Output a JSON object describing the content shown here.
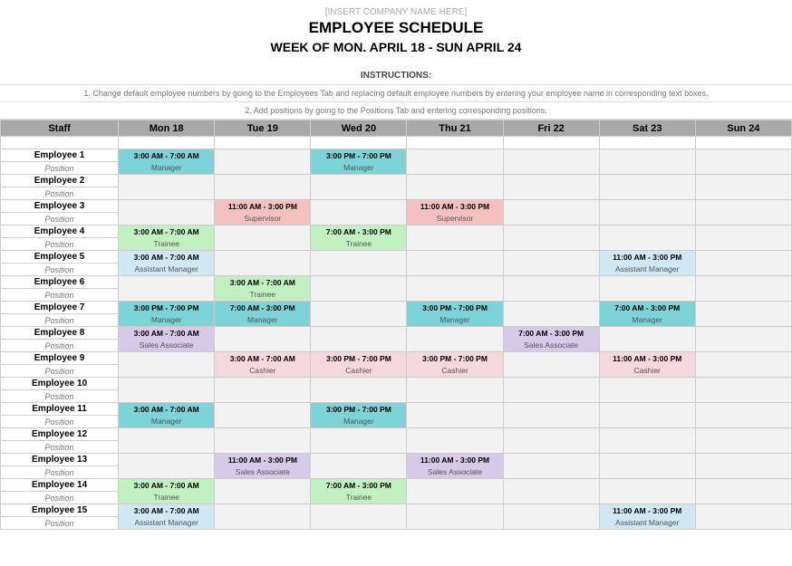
{
  "header": {
    "company_placeholder": "[INSERT COMPANY NAME HERE]",
    "title": "EMPLOYEE SCHEDULE",
    "week": "WEEK OF MON. APRIL 18 - SUN APRIL 24",
    "instructions_label": "INSTRUCTIONS:",
    "instruction1": "1. Change default employee numbers by going to the Employees Tab and replacing default employee numbers by entering your employee name in corresponding text boxes.",
    "instruction2": "2. Add positions by going to the Positions Tab and entering corresponding positions."
  },
  "columns": {
    "staff": "Staff",
    "days": [
      "Mon 18",
      "Tue 19",
      "Wed 20",
      "Thu 21",
      "Fri 22",
      "Sat 23",
      "Sun 24"
    ]
  },
  "position_label": "Position",
  "colors": {
    "header_row": "#a9a9a9",
    "empty_gray": "#f2f2f2",
    "Manager": "#7cd3d8",
    "Assistant Manager": "#cfe8f4",
    "Supervisor": "#f4c0c0",
    "Trainee": "#c1f0c1",
    "Sales Associate": "#d7c9e8",
    "Cashier": "#f5d8dc"
  },
  "employees": [
    {
      "name": "Employee 1",
      "shifts": {
        "Mon 18": {
          "time": "3:00 AM - 7:00 AM",
          "role": "Manager",
          "cls": "clr-teal"
        },
        "Wed 20": {
          "time": "3:00 PM - 7:00 PM",
          "role": "Manager",
          "cls": "clr-teal"
        }
      }
    },
    {
      "name": "Employee 2",
      "shifts": {}
    },
    {
      "name": "Employee 3",
      "shifts": {
        "Tue 19": {
          "time": "11:00 AM - 3:00 PM",
          "role": "Supervisor",
          "cls": "clr-pink"
        },
        "Thu 21": {
          "time": "11:00 AM - 3:00 PM",
          "role": "Supervisor",
          "cls": "clr-pink"
        }
      }
    },
    {
      "name": "Employee 4",
      "shifts": {
        "Mon 18": {
          "time": "3:00 AM - 7:00 AM",
          "role": "Trainee",
          "cls": "clr-green"
        },
        "Wed 20": {
          "time": "7:00 AM - 3:00 PM",
          "role": "Trainee",
          "cls": "clr-green"
        }
      }
    },
    {
      "name": "Employee 5",
      "shifts": {
        "Mon 18": {
          "time": "3:00 AM - 7:00 AM",
          "role": "Assistant Manager",
          "cls": "clr-blue"
        },
        "Sat 23": {
          "time": "11:00 AM - 3:00 PM",
          "role": "Assistant Manager",
          "cls": "clr-blue"
        }
      }
    },
    {
      "name": "Employee 6",
      "shifts": {
        "Tue 19": {
          "time": "3:00 AM - 7:00 AM",
          "role": "Trainee",
          "cls": "clr-green"
        }
      }
    },
    {
      "name": "Employee 7",
      "shifts": {
        "Mon 18": {
          "time": "3:00 PM - 7:00 PM",
          "role": "Manager",
          "cls": "clr-teal"
        },
        "Tue 19": {
          "time": "7:00 AM - 3:00 PM",
          "role": "Manager",
          "cls": "clr-teal"
        },
        "Thu 21": {
          "time": "3:00 PM - 7:00 PM",
          "role": "Manager",
          "cls": "clr-teal"
        },
        "Sat 23": {
          "time": "7:00 AM - 3:00 PM",
          "role": "Manager",
          "cls": "clr-teal"
        }
      }
    },
    {
      "name": "Employee 8",
      "shifts": {
        "Mon 18": {
          "time": "3:00 AM - 7:00 AM",
          "role": "Sales Associate",
          "cls": "clr-purple"
        },
        "Fri 22": {
          "time": "7:00 AM - 3:00 PM",
          "role": "Sales Associate",
          "cls": "clr-purple"
        }
      }
    },
    {
      "name": "Employee 9",
      "shifts": {
        "Tue 19": {
          "time": "3:00 AM - 7:00 AM",
          "role": "Cashier",
          "cls": "clr-rose"
        },
        "Wed 20": {
          "time": "3:00 PM - 7:00 PM",
          "role": "Cashier",
          "cls": "clr-rose"
        },
        "Thu 21": {
          "time": "3:00 PM - 7:00 PM",
          "role": "Cashier",
          "cls": "clr-rose"
        },
        "Sat 23": {
          "time": "11:00 AM - 3:00 PM",
          "role": "Cashier",
          "cls": "clr-rose"
        }
      }
    },
    {
      "name": "Employee 10",
      "shifts": {}
    },
    {
      "name": "Employee 11",
      "shifts": {
        "Mon 18": {
          "time": "3:00 AM - 7:00 AM",
          "role": "Manager",
          "cls": "clr-teal"
        },
        "Wed 20": {
          "time": "3:00 PM - 7:00 PM",
          "role": "Manager",
          "cls": "clr-teal"
        }
      }
    },
    {
      "name": "Employee 12",
      "shifts": {}
    },
    {
      "name": "Employee 13",
      "shifts": {
        "Tue 19": {
          "time": "11:00 AM - 3:00 PM",
          "role": "Sales Associate",
          "cls": "clr-purple"
        },
        "Thu 21": {
          "time": "11:00 AM - 3:00 PM",
          "role": "Sales Associate",
          "cls": "clr-purple"
        }
      }
    },
    {
      "name": "Employee 14",
      "shifts": {
        "Mon 18": {
          "time": "3:00 AM - 7:00 AM",
          "role": "Trainee",
          "cls": "clr-green"
        },
        "Wed 20": {
          "time": "7:00 AM - 3:00 PM",
          "role": "Trainee",
          "cls": "clr-green"
        }
      }
    },
    {
      "name": "Employee 15",
      "shifts": {
        "Mon 18": {
          "time": "3:00 AM - 7:00 AM",
          "role": "Assistant Manager",
          "cls": "clr-blue"
        },
        "Sat 23": {
          "time": "11:00 AM - 3:00 PM",
          "role": "Assistant Manager",
          "cls": "clr-blue"
        }
      }
    }
  ]
}
